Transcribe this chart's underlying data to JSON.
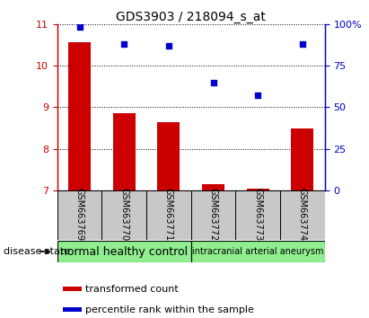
{
  "title": "GDS3903 / 218094_s_at",
  "samples": [
    "GSM663769",
    "GSM663770",
    "GSM663771",
    "GSM663772",
    "GSM663773",
    "GSM663774"
  ],
  "red_values": [
    10.55,
    8.87,
    8.65,
    7.15,
    7.05,
    8.5
  ],
  "blue_values": [
    98,
    88,
    87,
    65,
    57,
    88
  ],
  "ylim_left": [
    7,
    11
  ],
  "ylim_right": [
    0,
    100
  ],
  "yticks_left": [
    7,
    8,
    9,
    10,
    11
  ],
  "yticks_right": [
    0,
    25,
    50,
    75,
    100
  ],
  "ytick_labels_right": [
    "0",
    "25",
    "50",
    "75",
    "100%"
  ],
  "group1_label": "normal healthy control",
  "group2_label": "intracranial arterial aneurysm",
  "group_color": "#90EE90",
  "sample_box_color": "#c8c8c8",
  "bar_color": "#cc0000",
  "dot_color": "#0000cc",
  "bar_width": 0.5,
  "bar_bottom": 7.0,
  "legend_red_label": "transformed count",
  "legend_blue_label": "percentile rank within the sample",
  "disease_state_label": "disease state",
  "title_fontsize": 10,
  "tick_fontsize": 8,
  "sample_fontsize": 7,
  "group_fontsize1": 9,
  "group_fontsize2": 7,
  "legend_fontsize": 8,
  "disease_state_fontsize": 8
}
